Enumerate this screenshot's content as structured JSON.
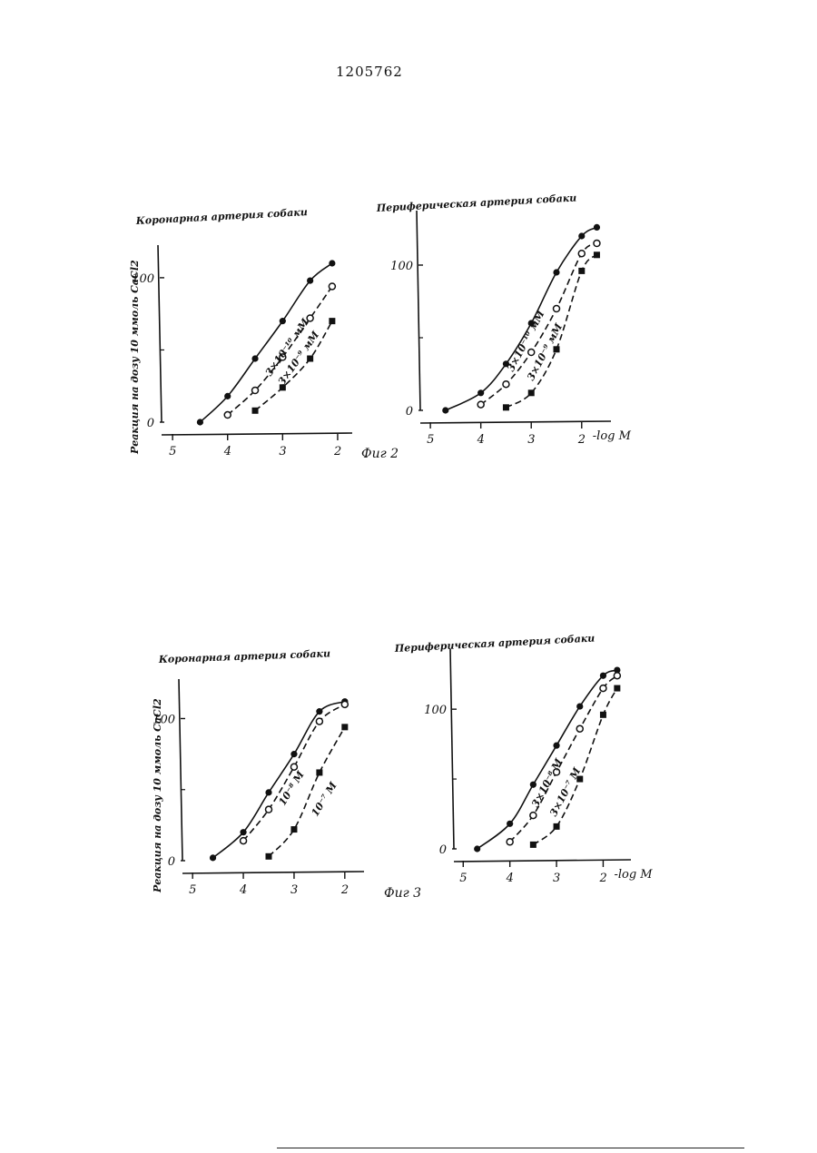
{
  "page_number": "1205762",
  "figures": [
    {
      "label": "Фиг 2"
    },
    {
      "label": "Фиг 3"
    }
  ],
  "chart_data": [
    {
      "type": "line",
      "title": "Коронарная артерия собаки",
      "ylabel": "Реакция на дозу 10 ммоль CaCl2",
      "xlabel": "",
      "x_ticks": [
        5,
        4,
        3,
        2
      ],
      "y_ticks": [
        0,
        100
      ],
      "xlim": [
        5.2,
        1.9
      ],
      "ylim": [
        0,
        110
      ],
      "series": [
        {
          "marker": "filled-circle",
          "style": "solid",
          "x": [
            4.5,
            4.0,
            3.5,
            3.0,
            2.5,
            2.1
          ],
          "y": [
            0,
            18,
            44,
            70,
            98,
            110
          ]
        },
        {
          "marker": "open-circle",
          "style": "dashed",
          "x": [
            4.0,
            3.5,
            3.0,
            2.5,
            2.1
          ],
          "y": [
            5,
            22,
            45,
            72,
            94
          ]
        },
        {
          "marker": "filled-square",
          "style": "dashed",
          "x": [
            3.5,
            3.0,
            2.5,
            2.1
          ],
          "y": [
            8,
            24,
            44,
            70
          ]
        }
      ],
      "annotations": [
        "3×10⁻¹⁰ мМ",
        "3×10⁻⁹ мМ"
      ]
    },
    {
      "type": "line",
      "title": "Периферическая артерия собаки",
      "ylabel": "",
      "xlabel": "-log M",
      "x_ticks": [
        5,
        4,
        3,
        2
      ],
      "y_ticks": [
        0,
        100
      ],
      "xlim": [
        5.2,
        1.6
      ],
      "ylim": [
        0,
        125
      ],
      "series": [
        {
          "marker": "filled-circle",
          "style": "solid",
          "x": [
            4.7,
            4.0,
            3.5,
            3.0,
            2.5,
            2.0,
            1.7
          ],
          "y": [
            0,
            12,
            32,
            60,
            95,
            120,
            126
          ]
        },
        {
          "marker": "open-circle",
          "style": "dashed",
          "x": [
            4.0,
            3.5,
            3.0,
            2.5,
            2.0,
            1.7
          ],
          "y": [
            4,
            18,
            40,
            70,
            108,
            115
          ]
        },
        {
          "marker": "filled-square",
          "style": "dashed",
          "x": [
            3.5,
            3.0,
            2.5,
            2.0,
            1.7
          ],
          "y": [
            2,
            12,
            42,
            96,
            107
          ]
        }
      ],
      "annotations": [
        "3×10⁻¹⁰ мМ",
        "3×10⁻⁹ мМ"
      ]
    },
    {
      "type": "line",
      "title": "Коронарная артерия собаки",
      "ylabel": "Реакция на дозу 10 ммоль CaCl2",
      "xlabel": "",
      "x_ticks": [
        5,
        4,
        3,
        2
      ],
      "y_ticks": [
        0,
        100
      ],
      "xlim": [
        5.2,
        1.8
      ],
      "ylim": [
        0,
        115
      ],
      "series": [
        {
          "marker": "filled-circle",
          "style": "solid",
          "x": [
            4.6,
            4.0,
            3.5,
            3.0,
            2.5,
            2.0
          ],
          "y": [
            2,
            20,
            48,
            75,
            105,
            112
          ]
        },
        {
          "marker": "open-circle",
          "style": "dashed",
          "x": [
            4.0,
            3.5,
            3.0,
            2.5,
            2.0
          ],
          "y": [
            14,
            36,
            66,
            98,
            110
          ]
        },
        {
          "marker": "filled-square",
          "style": "dashed",
          "x": [
            3.5,
            3.0,
            2.5,
            2.0
          ],
          "y": [
            3,
            22,
            62,
            94
          ]
        }
      ],
      "annotations": [
        "10⁻⁸ М",
        "10⁻⁷ М"
      ]
    },
    {
      "type": "line",
      "title": "Периферическая артерия собаки",
      "ylabel": "",
      "xlabel": "-log M",
      "x_ticks": [
        5,
        4,
        3,
        2
      ],
      "y_ticks": [
        0,
        100
      ],
      "xlim": [
        5.2,
        1.6
      ],
      "ylim": [
        0,
        130
      ],
      "series": [
        {
          "marker": "filled-circle",
          "style": "solid",
          "x": [
            4.7,
            4.0,
            3.5,
            3.0,
            2.5,
            2.0,
            1.7
          ],
          "y": [
            0,
            18,
            46,
            74,
            102,
            124,
            128
          ]
        },
        {
          "marker": "open-circle",
          "style": "dashed",
          "x": [
            4.0,
            3.5,
            3.0,
            2.5,
            2.0,
            1.7
          ],
          "y": [
            5,
            24,
            55,
            86,
            115,
            124
          ]
        },
        {
          "marker": "filled-square",
          "style": "dashed",
          "x": [
            3.5,
            3.0,
            2.5,
            2.0,
            1.7
          ],
          "y": [
            3,
            16,
            50,
            96,
            115
          ]
        }
      ],
      "annotations": [
        "3×10⁻⁸ М",
        "3×10⁻⁷ М"
      ]
    }
  ]
}
